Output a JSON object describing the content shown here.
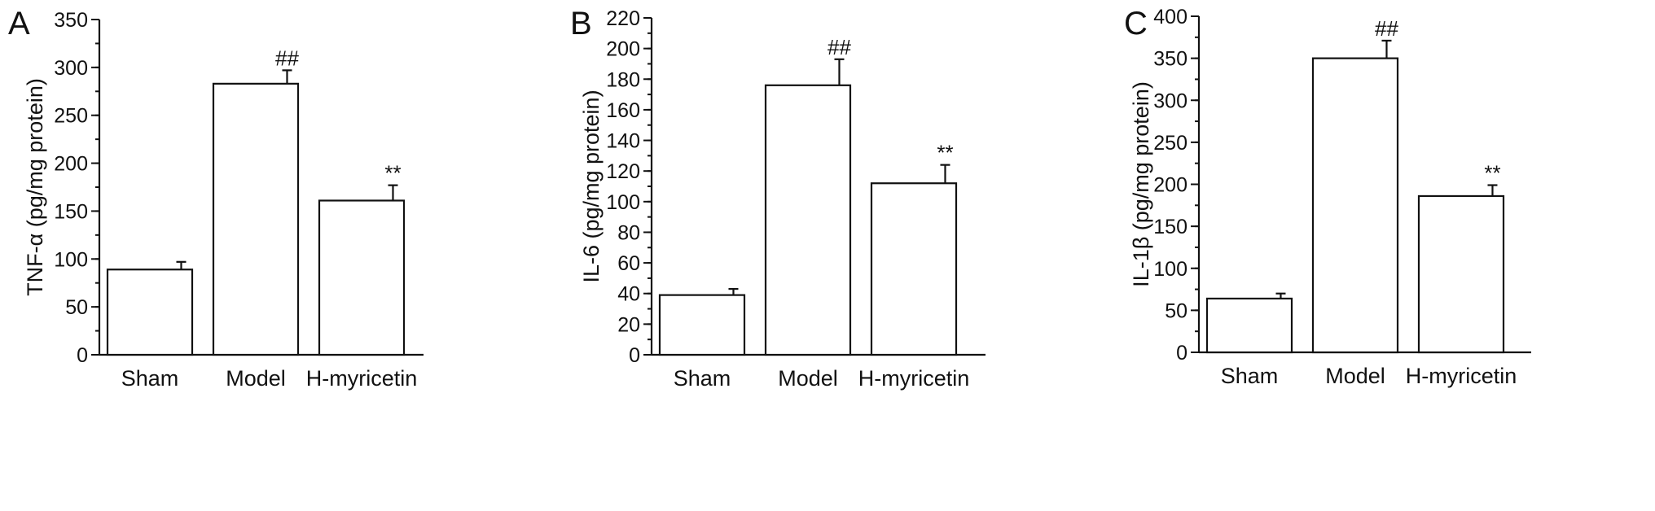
{
  "chart_data": [
    {
      "panel": "A",
      "type": "bar",
      "ylabel": "TNF-α (pg/mg protein)",
      "categories": [
        "Sham",
        "Model",
        "H-myricetin"
      ],
      "values": [
        89,
        283,
        161
      ],
      "errors": [
        8,
        14,
        16
      ],
      "annotations": [
        "",
        "##",
        "**"
      ],
      "ylim": [
        0,
        350
      ],
      "yticks": [
        0,
        50,
        100,
        150,
        200,
        250,
        300,
        350
      ],
      "minor_step": 25,
      "color": "#111111"
    },
    {
      "panel": "B",
      "type": "bar",
      "ylabel": "IL-6 (pg/mg protein)",
      "categories": [
        "Sham",
        "Model",
        "H-myricetin"
      ],
      "values": [
        39,
        176,
        112
      ],
      "errors": [
        4,
        17,
        12
      ],
      "annotations": [
        "",
        "##",
        "**"
      ],
      "ylim": [
        0,
        220
      ],
      "yticks": [
        0,
        20,
        40,
        60,
        80,
        100,
        120,
        140,
        160,
        180,
        200,
        220
      ],
      "minor_step": 10,
      "color": "#111111"
    },
    {
      "panel": "C",
      "type": "bar",
      "ylabel": "IL-1β (pg/mg protein)",
      "categories": [
        "Sham",
        "Model",
        "H-myricetin"
      ],
      "values": [
        64,
        350,
        186
      ],
      "errors": [
        6,
        21,
        13
      ],
      "annotations": [
        "",
        "##",
        "**"
      ],
      "ylim": [
        0,
        400
      ],
      "yticks": [
        0,
        50,
        100,
        150,
        200,
        250,
        300,
        350,
        400
      ],
      "minor_step": 25,
      "color": "#111111"
    }
  ]
}
